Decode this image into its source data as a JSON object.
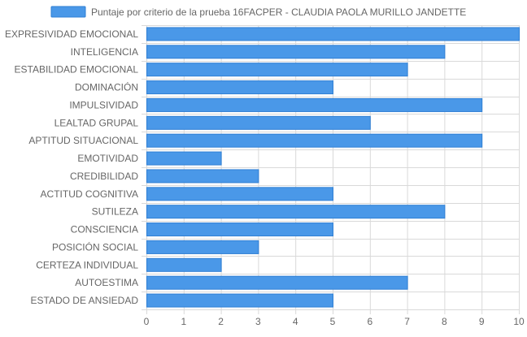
{
  "chart_data": {
    "type": "bar",
    "orientation": "horizontal",
    "categories": [
      "EXPRESIVIDAD EMOCIONAL",
      "INTELIGENCIA",
      "ESTABILIDAD EMOCIONAL",
      "DOMINACIÓN",
      "IMPULSIVIDAD",
      "LEALTAD GRUPAL",
      "APTITUD SITUACIONAL",
      "EMOTIVIDAD",
      "CREDIBILIDAD",
      "ACTITUD COGNITIVA",
      "SUTILEZA",
      "CONSCIENCIA",
      "POSICIÓN SOCIAL",
      "CERTEZA INDIVIDUAL",
      "AUTOESTIMA",
      "ESTADO DE ANSIEDAD"
    ],
    "series": [
      {
        "name": "Puntaje por criterio de la prueba 16FACPER - CLAUDIA PAOLA MURILLO JANDETTE",
        "values": [
          10,
          8,
          7,
          5,
          9,
          6,
          9,
          2,
          3,
          5,
          8,
          5,
          3,
          2,
          7,
          5
        ],
        "color": "#4a98e8"
      }
    ],
    "xlim": [
      0,
      10
    ],
    "x_ticks": [
      "0",
      "1",
      "2",
      "3",
      "4",
      "5",
      "6",
      "7",
      "8",
      "9",
      "10"
    ],
    "grid": true,
    "legend_position": "top-center",
    "colors": {
      "bar_fill": "#4a98e8",
      "bar_stroke": "#2f7fd4",
      "grid": "#d9d9d9",
      "axis_text": "#666666"
    }
  }
}
